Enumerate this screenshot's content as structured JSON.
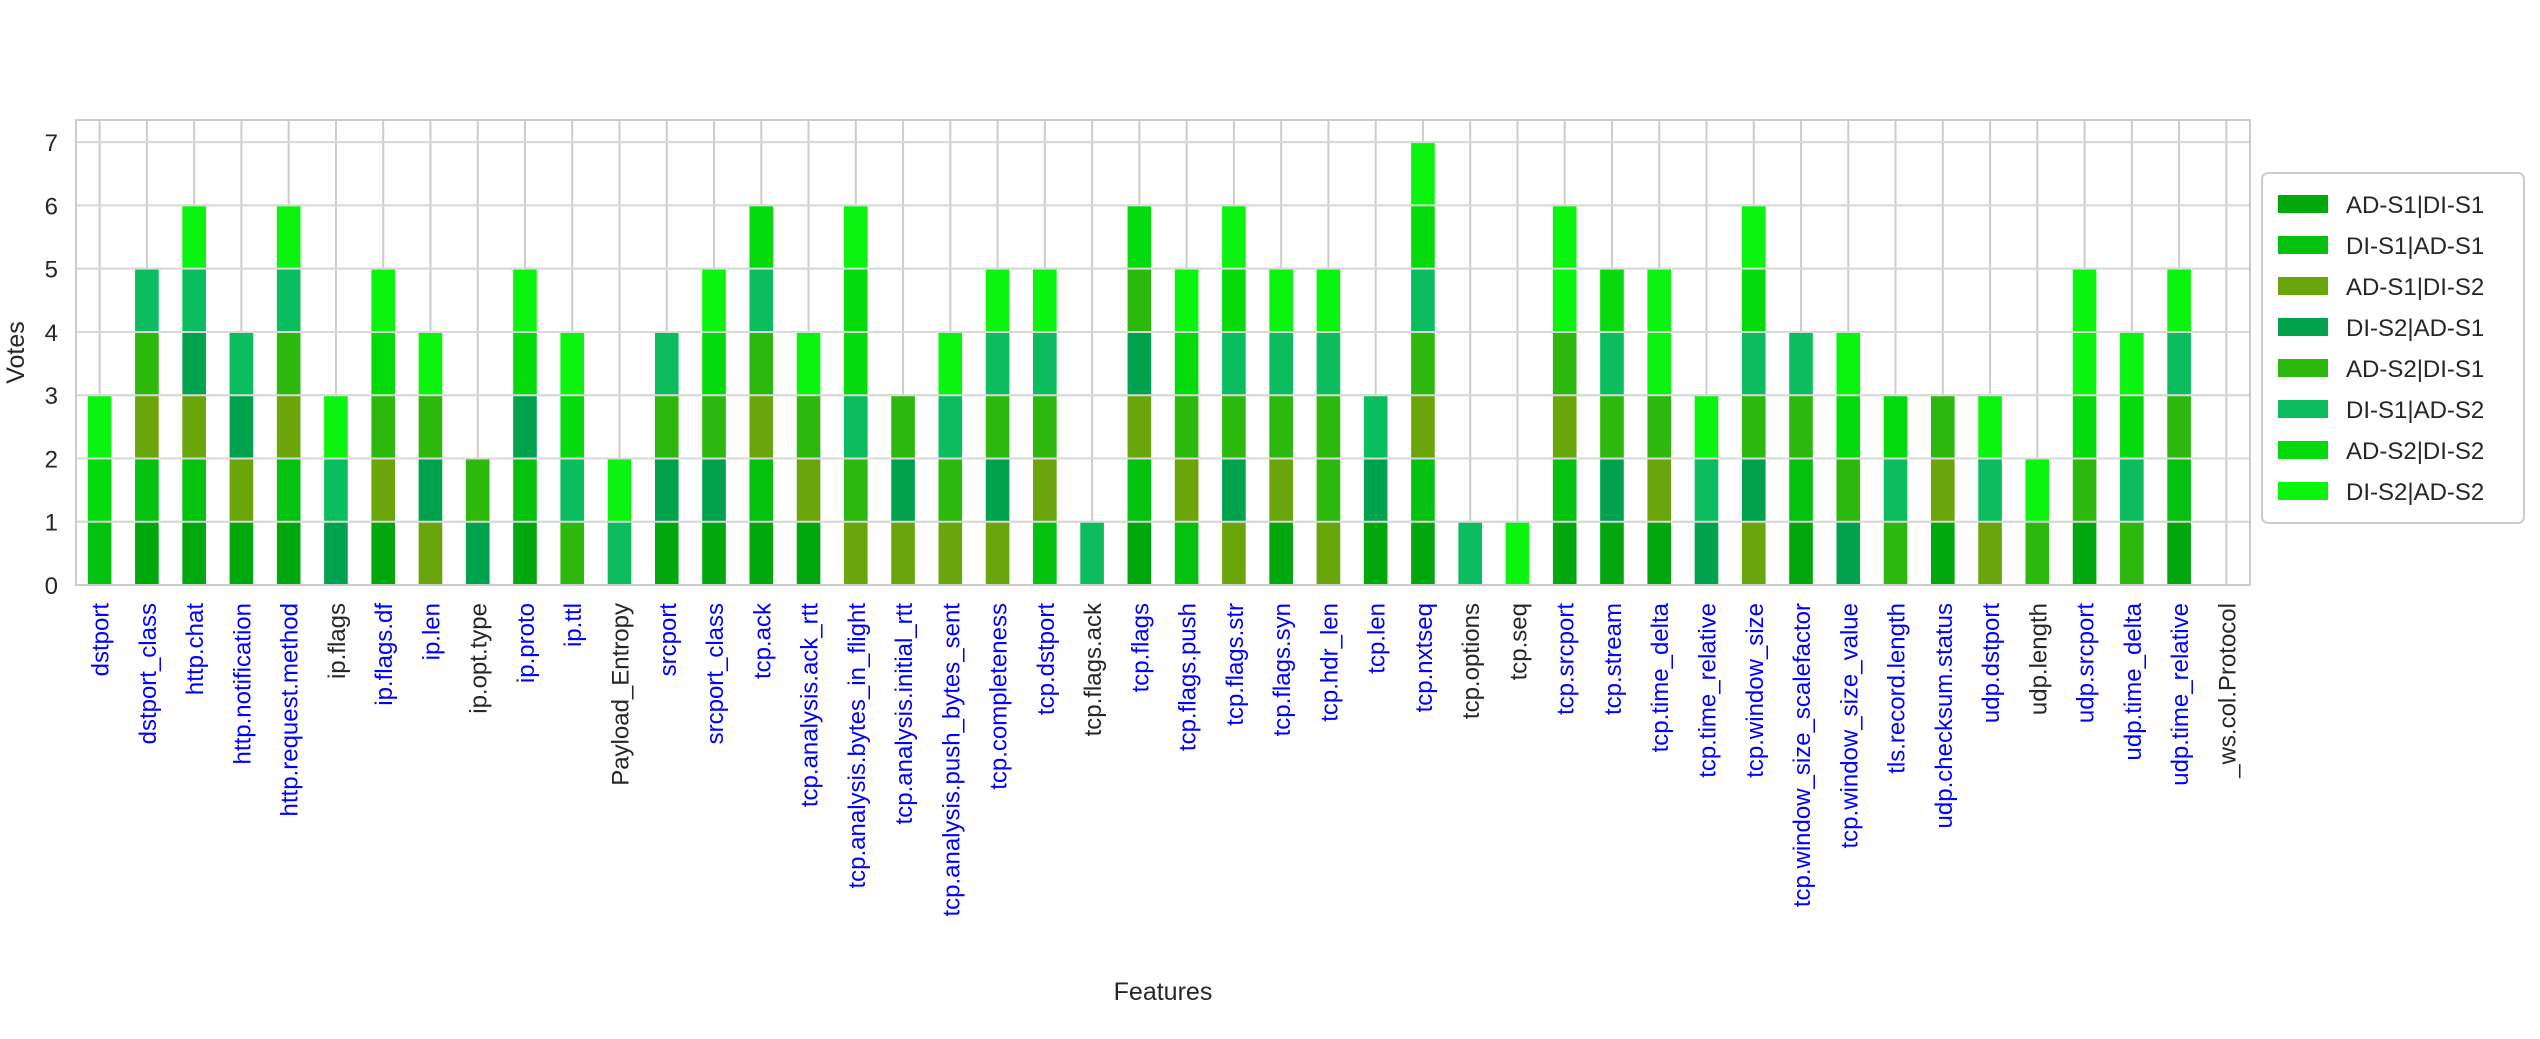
{
  "chart_data": {
    "type": "bar",
    "stacked": true,
    "xlabel": "Features",
    "ylabel": "Votes",
    "ylim": [
      0,
      7.35
    ],
    "yticks": [
      0,
      1,
      2,
      3,
      4,
      5,
      6,
      7
    ],
    "grid": true,
    "legend_position": "right",
    "categories": [
      "dstport",
      "dstport_class",
      "http.chat",
      "http.notification",
      "http.request.method",
      "ip.flags",
      "ip.flags.df",
      "ip.len",
      "ip.opt.type",
      "ip.proto",
      "ip.ttl",
      "Payload_Entropy",
      "srcport",
      "srcport_class",
      "tcp.ack",
      "tcp.analysis.ack_rtt",
      "tcp.analysis.bytes_in_flight",
      "tcp.analysis.initial_rtt",
      "tcp.analysis.push_bytes_sent",
      "tcp.completeness",
      "tcp.dstport",
      "tcp.flags.ack",
      "tcp.flags",
      "tcp.flags.push",
      "tcp.flags.str",
      "tcp.flags.syn",
      "tcp.hdr_len",
      "tcp.len",
      "tcp.nxtseq",
      "tcp.options",
      "tcp.seq",
      "tcp.srcport",
      "tcp.stream",
      "tcp.time_delta",
      "tcp.time_relative",
      "tcp.window_size",
      "tcp.window_size_scalefactor",
      "tcp.window_size_value",
      "tls.record.length",
      "udp.checksum.status",
      "udp.dstport",
      "udp.length",
      "udp.srcport",
      "udp.time_delta",
      "udp.time_relative",
      "_ws.col.Protocol"
    ],
    "category_colors": [
      "#0000ff",
      "#0000ff",
      "#0000ff",
      "#0000ff",
      "#0000ff",
      "#262626",
      "#0000ff",
      "#0000ff",
      "#262626",
      "#0000ff",
      "#0000ff",
      "#262626",
      "#0000ff",
      "#0000ff",
      "#0000ff",
      "#0000ff",
      "#0000ff",
      "#0000ff",
      "#0000ff",
      "#0000ff",
      "#0000ff",
      "#262626",
      "#0000ff",
      "#0000ff",
      "#0000ff",
      "#0000ff",
      "#0000ff",
      "#0000ff",
      "#0000ff",
      "#262626",
      "#262626",
      "#0000ff",
      "#0000ff",
      "#0000ff",
      "#0000ff",
      "#0000ff",
      "#0000ff",
      "#0000ff",
      "#0000ff",
      "#0000ff",
      "#0000ff",
      "#262626",
      "#0000ff",
      "#0000ff",
      "#0000ff",
      "#262626"
    ],
    "series": [
      {
        "name": "AD-S1|DI-S1",
        "color": "#00a80e",
        "values": [
          0,
          1,
          1,
          1,
          1,
          0,
          1,
          0,
          0,
          1,
          0,
          0,
          1,
          1,
          1,
          1,
          0,
          0,
          0,
          0,
          0,
          0,
          1,
          0,
          0,
          1,
          0,
          1,
          1,
          0,
          0,
          1,
          1,
          1,
          0,
          0,
          1,
          0,
          0,
          1,
          0,
          0,
          1,
          0,
          1,
          0
        ]
      },
      {
        "name": "DI-S1|AD-S1",
        "color": "#04c110",
        "values": [
          1,
          1,
          1,
          0,
          1,
          0,
          0,
          0,
          0,
          1,
          0,
          0,
          0,
          0,
          1,
          0,
          0,
          0,
          0,
          0,
          1,
          0,
          1,
          1,
          0,
          0,
          0,
          0,
          1,
          0,
          0,
          1,
          0,
          0,
          0,
          0,
          1,
          0,
          0,
          0,
          0,
          0,
          0,
          0,
          1,
          0
        ]
      },
      {
        "name": "AD-S1|DI-S2",
        "color": "#6aa60b",
        "values": [
          0,
          1,
          1,
          1,
          1,
          0,
          1,
          1,
          0,
          0,
          0,
          0,
          0,
          0,
          1,
          1,
          1,
          1,
          1,
          1,
          1,
          0,
          1,
          1,
          1,
          1,
          1,
          0,
          1,
          0,
          0,
          1,
          0,
          1,
          0,
          1,
          0,
          0,
          0,
          1,
          1,
          0,
          0,
          0,
          0,
          0
        ]
      },
      {
        "name": "DI-S2|AD-S1",
        "color": "#00a24e",
        "values": [
          0,
          0,
          1,
          1,
          0,
          1,
          0,
          1,
          1,
          1,
          0,
          0,
          1,
          1,
          0,
          0,
          0,
          1,
          0,
          1,
          0,
          0,
          1,
          0,
          1,
          0,
          0,
          1,
          0,
          0,
          0,
          0,
          1,
          0,
          1,
          1,
          0,
          1,
          0,
          0,
          0,
          0,
          0,
          0,
          0,
          0
        ]
      },
      {
        "name": "AD-S2|DI-S1",
        "color": "#2db80d",
        "values": [
          0,
          1,
          0,
          0,
          1,
          0,
          1,
          1,
          1,
          0,
          1,
          0,
          1,
          1,
          1,
          1,
          1,
          1,
          1,
          1,
          1,
          0,
          1,
          1,
          1,
          1,
          2,
          0,
          1,
          0,
          0,
          1,
          1,
          1,
          0,
          1,
          1,
          1,
          1,
          1,
          0,
          1,
          1,
          1,
          1,
          0
        ]
      },
      {
        "name": "DI-S1|AD-S2",
        "color": "#0cbd5f",
        "values": [
          0,
          1,
          1,
          1,
          1,
          1,
          0,
          0,
          0,
          0,
          1,
          1,
          1,
          0,
          1,
          0,
          1,
          0,
          1,
          1,
          1,
          1,
          0,
          0,
          1,
          1,
          1,
          1,
          1,
          1,
          0,
          0,
          1,
          0,
          1,
          1,
          1,
          0,
          1,
          0,
          1,
          0,
          0,
          1,
          1,
          0
        ]
      },
      {
        "name": "AD-S2|DI-S2",
        "color": "#05db0c",
        "values": [
          1,
          0,
          0,
          0,
          0,
          0,
          1,
          0,
          0,
          1,
          1,
          0,
          0,
          1,
          1,
          0,
          2,
          0,
          0,
          0,
          0,
          0,
          1,
          1,
          1,
          0,
          0,
          0,
          1,
          0,
          0,
          0,
          1,
          0,
          0,
          1,
          0,
          1,
          1,
          0,
          0,
          0,
          1,
          1,
          0,
          0
        ]
      },
      {
        "name": "DI-S2|AD-S2",
        "color": "#0bf40f",
        "values": [
          1,
          0,
          1,
          0,
          1,
          1,
          1,
          1,
          0,
          1,
          1,
          1,
          0,
          1,
          0,
          1,
          1,
          0,
          1,
          1,
          1,
          0,
          0,
          1,
          1,
          1,
          1,
          0,
          1,
          0,
          1,
          2,
          0,
          2,
          1,
          1,
          0,
          1,
          0,
          0,
          1,
          1,
          2,
          1,
          1,
          0
        ]
      }
    ]
  }
}
